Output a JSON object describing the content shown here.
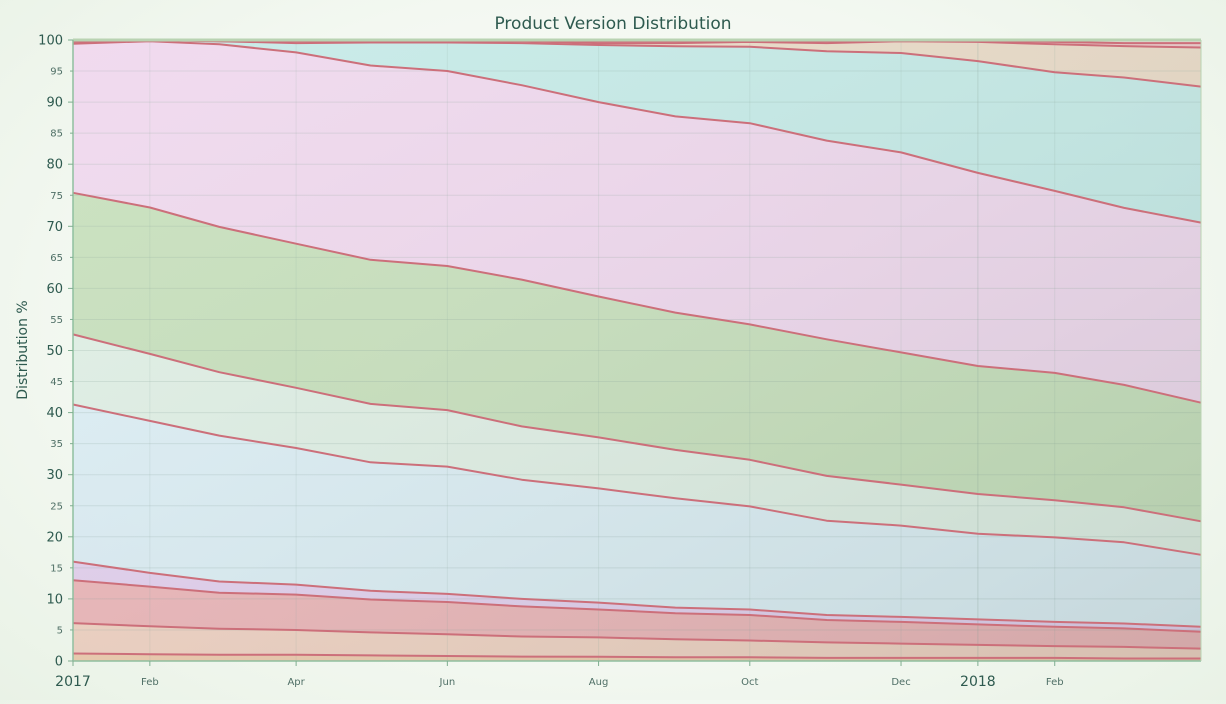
{
  "chart_data": {
    "type": "area",
    "stacked": true,
    "normalized_percent": true,
    "title": "Product Version Distribution",
    "ylabel": "Distribution %",
    "xlabel": "",
    "ylim": [
      0,
      100
    ],
    "y_ticks_major": [
      0,
      10,
      20,
      30,
      40,
      50,
      60,
      70,
      80,
      90,
      100
    ],
    "y_ticks_minor": [
      5,
      15,
      25,
      35,
      45,
      55,
      65,
      75,
      85,
      95
    ],
    "x_tick_labels": [
      {
        "label": "2017",
        "date": "2017-01",
        "kind": "year"
      },
      {
        "label": "Feb",
        "date": "2017-02",
        "kind": "month"
      },
      {
        "label": "Apr",
        "date": "2017-04",
        "kind": "month"
      },
      {
        "label": "Jun",
        "date": "2017-06",
        "kind": "month"
      },
      {
        "label": "Aug",
        "date": "2017-08",
        "kind": "month"
      },
      {
        "label": "Oct",
        "date": "2017-10",
        "kind": "month"
      },
      {
        "label": "Dec",
        "date": "2017-12",
        "kind": "month"
      },
      {
        "label": "2018",
        "date": "2018-01",
        "kind": "year"
      },
      {
        "label": "Feb",
        "date": "2018-02",
        "kind": "month"
      }
    ],
    "x": [
      "2017-01",
      "2017-02",
      "2017-03",
      "2017-04",
      "2017-05",
      "2017-06",
      "2017-07",
      "2017-08",
      "2017-09",
      "2017-10",
      "2017-11",
      "2017-12",
      "2018-01",
      "2018-02",
      "2018-03",
      "2018-04"
    ],
    "grid": true,
    "legend": "none",
    "line_color": "#cc6f7a",
    "series": [
      {
        "color": "#f0c8a8",
        "values": [
          1.2,
          1.1,
          1.0,
          1.0,
          0.9,
          0.8,
          0.7,
          0.7,
          0.6,
          0.6,
          0.5,
          0.5,
          0.5,
          0.5,
          0.4,
          0.4
        ]
      },
      {
        "color": "#f2cfc0",
        "values": [
          4.9,
          4.5,
          4.2,
          4.0,
          3.7,
          3.5,
          3.2,
          3.1,
          2.9,
          2.7,
          2.5,
          2.3,
          2.1,
          1.9,
          1.9,
          1.6
        ]
      },
      {
        "color": "#edb0b5",
        "values": [
          6.9,
          6.4,
          5.8,
          5.7,
          5.3,
          5.2,
          4.8,
          4.5,
          4.2,
          4.1,
          3.6,
          3.5,
          3.3,
          3.1,
          3.0,
          2.7
        ]
      },
      {
        "color": "#e3cdef",
        "values": [
          3.0,
          2.2,
          1.8,
          1.6,
          1.4,
          1.3,
          1.2,
          1.1,
          0.9,
          0.9,
          0.8,
          0.8,
          0.8,
          0.8,
          0.8,
          0.8
        ]
      },
      {
        "color": "#dbedf6",
        "values": [
          25.3,
          24.5,
          23.5,
          22.0,
          20.7,
          20.5,
          19.0,
          18.4,
          17.6,
          16.6,
          15.2,
          14.7,
          13.8,
          13.6,
          13.2,
          11.6
        ]
      },
      {
        "color": "#dfeee4",
        "values": [
          11.3,
          10.8,
          10.2,
          9.7,
          9.4,
          9.1,
          8.5,
          8.2,
          7.8,
          7.5,
          7.2,
          6.6,
          6.4,
          6.0,
          5.7,
          5.4
        ]
      },
      {
        "color": "#c4deb8",
        "values": [
          22.8,
          23.6,
          23.4,
          23.2,
          23.2,
          23.2,
          23.4,
          22.7,
          22.1,
          21.8,
          22.0,
          21.3,
          20.6,
          20.5,
          19.9,
          19.1
        ]
      },
      {
        "color": "#efd5ed",
        "values": [
          24.0,
          26.8,
          29.4,
          30.8,
          31.3,
          31.4,
          31.0,
          31.3,
          31.6,
          32.4,
          32.0,
          32.2,
          31.1,
          29.3,
          28.8,
          29.0
        ]
      },
      {
        "color": "#c2e9e7",
        "values": [
          0.3,
          0.2,
          0.5,
          1.5,
          3.7,
          4.6,
          6.7,
          9.2,
          11.3,
          12.3,
          14.4,
          16.0,
          18.0,
          19.1,
          21.2,
          21.9
        ]
      },
      {
        "color": "#ead8c4",
        "values": [
          0.2,
          0.0,
          0.0,
          0.3,
          0.2,
          0.2,
          0.3,
          0.3,
          0.5,
          0.8,
          1.3,
          1.9,
          3.1,
          4.5,
          5.1,
          6.3
        ]
      },
      {
        "color": "#ecc6c6",
        "values": [
          0.1,
          0.0,
          0.1,
          0.1,
          0.1,
          0.1,
          0.2,
          0.3,
          0.3,
          0.2,
          0.3,
          0.1,
          0.1,
          0.4,
          0.5,
          0.7
        ]
      },
      {
        "color": "#f5dddd",
        "values": [
          0.0,
          0.0,
          0.1,
          0.1,
          0.1,
          0.1,
          0.0,
          0.2,
          0.2,
          0.1,
          0.2,
          0.1,
          0.2,
          0.3,
          0.5,
          0.5
        ]
      }
    ]
  }
}
